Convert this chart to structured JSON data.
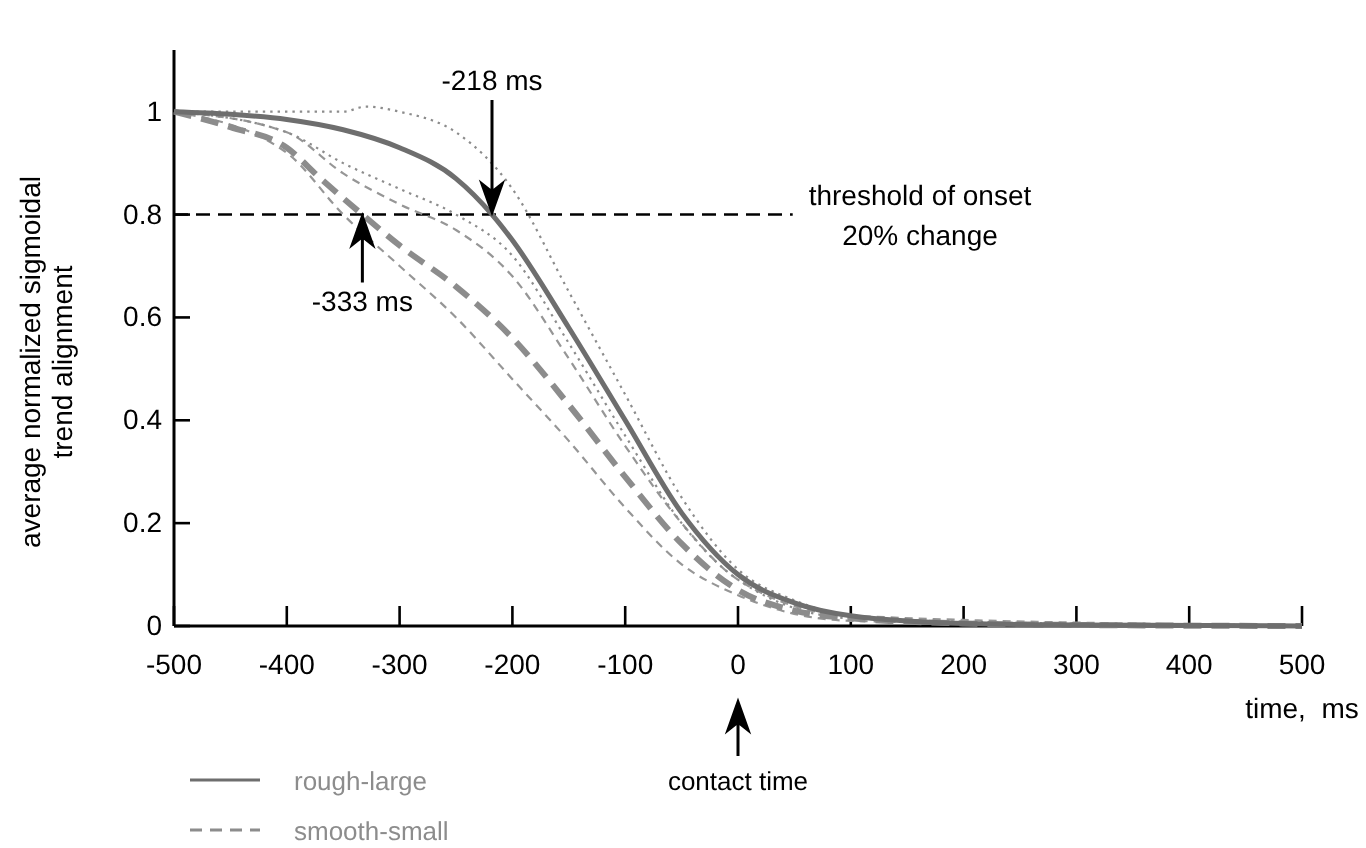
{
  "chart_data": {
    "type": "line",
    "xlabel": "time,  ms",
    "ylabel": "average normalized sigmoidal\ntrend alignment",
    "xlim": [
      -500,
      500
    ],
    "xticks": [
      -500,
      -400,
      -300,
      -200,
      -100,
      0,
      100,
      200,
      300,
      400,
      500
    ],
    "ylim": [
      0,
      1.12
    ],
    "yticks": [
      0,
      0.2,
      0.4,
      0.6,
      0.8,
      1
    ],
    "grid": false,
    "legend": "bottom left",
    "marker": "none",
    "series": [
      {
        "name": "rough-large",
        "color": "#6e6e6e",
        "line_style": "solid",
        "x": [
          -500,
          -450,
          -400,
          -350,
          -300,
          -250,
          -218,
          -200,
          -150,
          -100,
          -50,
          0,
          50,
          100,
          200,
          300,
          500
        ],
        "values": [
          1.0,
          0.995,
          0.985,
          0.965,
          0.93,
          0.87,
          0.8,
          0.75,
          0.58,
          0.4,
          0.22,
          0.1,
          0.045,
          0.02,
          0.005,
          0.002,
          0
        ]
      },
      {
        "name": "smooth-small",
        "color": "#8c8c8c",
        "line_style": "dashed",
        "x": [
          -500,
          -450,
          -400,
          -370,
          -333,
          -300,
          -250,
          -200,
          -150,
          -100,
          -50,
          0,
          50,
          100,
          200,
          300,
          500
        ],
        "values": [
          1.0,
          0.97,
          0.93,
          0.87,
          0.8,
          0.74,
          0.66,
          0.56,
          0.43,
          0.29,
          0.16,
          0.07,
          0.03,
          0.015,
          0.005,
          0.002,
          0
        ]
      },
      {
        "color": "#8c8c8c",
        "line_style": "dotted",
        "x": [
          -500,
          -400,
          -350,
          -330,
          -300,
          -250,
          -200,
          -150,
          -100,
          -50,
          0,
          50,
          100,
          200,
          450
        ],
        "values": [
          1,
          1.0,
          1.0,
          1.01,
          1.0,
          0.96,
          0.85,
          0.65,
          0.45,
          0.25,
          0.11,
          0.05,
          0.02,
          0.005,
          0.002
        ]
      },
      {
        "color": "#8c8c8c",
        "line_style": "dotted",
        "x": [
          -500,
          -400,
          -350,
          -300,
          -250,
          -200,
          -150,
          -100,
          -50,
          0,
          100,
          400
        ],
        "values": [
          1,
          0.96,
          0.9,
          0.85,
          0.8,
          0.72,
          0.55,
          0.37,
          0.2,
          0.09,
          0.015,
          0.002
        ]
      },
      {
        "color": "#969696",
        "line_style": "dashed",
        "x": [
          -500,
          -400,
          -350,
          -300,
          -250,
          -200,
          -150,
          -100,
          -50,
          0,
          100,
          450
        ],
        "values": [
          1,
          0.96,
          0.88,
          0.82,
          0.77,
          0.68,
          0.52,
          0.35,
          0.2,
          0.09,
          0.02,
          0.002
        ]
      },
      {
        "color": "#969696",
        "line_style": "dashed",
        "x": [
          -500,
          -400,
          -350,
          -300,
          -250,
          -200,
          -150,
          -100,
          -50,
          0,
          100,
          400
        ],
        "values": [
          1,
          0.92,
          0.8,
          0.7,
          0.6,
          0.48,
          0.36,
          0.23,
          0.12,
          0.06,
          0.01,
          0.002
        ]
      }
    ],
    "ref_lines": [
      {
        "axis": "y",
        "value": 0.8,
        "label": "threshold of onset\n20% change",
        "color": "#000000",
        "line_style": "dashed"
      }
    ],
    "annotations": [
      "-218 ms",
      {
        "text": "-333 ms",
        "x": -333,
        "y": 0.8
      },
      "contact time"
    ]
  }
}
